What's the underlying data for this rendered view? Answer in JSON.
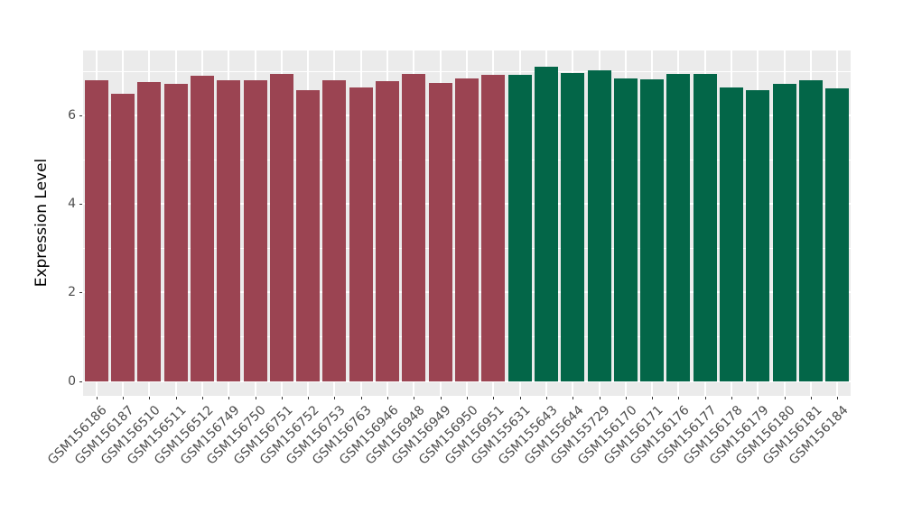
{
  "chart_data": {
    "type": "bar",
    "title": "",
    "xlabel": "",
    "ylabel": "Expression Level",
    "ylim": [
      0,
      7.48
    ],
    "yticks": [
      0,
      2,
      4,
      6
    ],
    "yticks_minor": [
      1,
      3,
      5,
      7
    ],
    "grid": "on",
    "legend": "none",
    "panel_bg": "#EBEBEB",
    "grid_color": "#FFFFFF",
    "tick_label_color": "#4D4D4D",
    "categories": [
      "GSM156186",
      "GSM156187",
      "GSM156510",
      "GSM156511",
      "GSM156512",
      "GSM156749",
      "GSM156750",
      "GSM156751",
      "GSM156752",
      "GSM156753",
      "GSM156763",
      "GSM156946",
      "GSM156948",
      "GSM156949",
      "GSM156950",
      "GSM156951",
      "GSM155631",
      "GSM155643",
      "GSM155644",
      "GSM155729",
      "GSM156170",
      "GSM156171",
      "GSM156176",
      "GSM156177",
      "GSM156178",
      "GSM156179",
      "GSM156180",
      "GSM156181",
      "GSM156184"
    ],
    "values": [
      6.79,
      6.49,
      6.75,
      6.71,
      6.9,
      6.79,
      6.79,
      6.93,
      6.57,
      6.79,
      6.64,
      6.78,
      6.94,
      6.73,
      6.84,
      6.91,
      6.92,
      7.11,
      6.95,
      7.03,
      6.84,
      6.81,
      6.94,
      6.94,
      6.63,
      6.58,
      6.71,
      6.79,
      6.62
    ],
    "groups": [
      "a",
      "a",
      "a",
      "a",
      "a",
      "a",
      "a",
      "a",
      "a",
      "a",
      "a",
      "a",
      "a",
      "a",
      "a",
      "a",
      "b",
      "b",
      "b",
      "b",
      "b",
      "b",
      "b",
      "b",
      "b",
      "b",
      "b",
      "b",
      "b"
    ],
    "group_colors": {
      "a": "#9B4452",
      "b": "#036648"
    }
  }
}
